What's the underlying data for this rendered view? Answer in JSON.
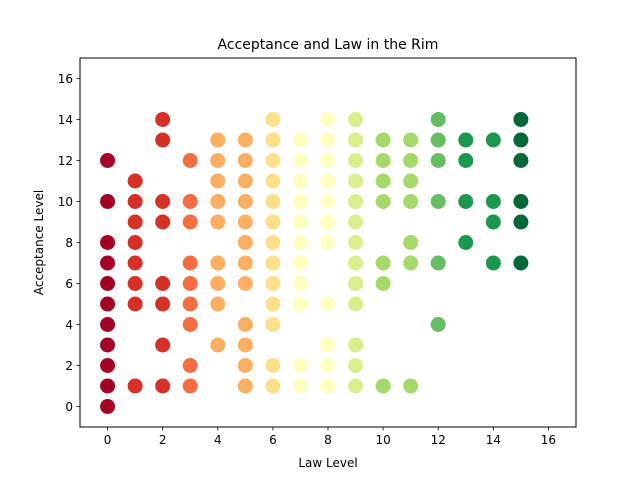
{
  "chart_data": {
    "type": "scatter",
    "title": "Acceptance and Law in the Rim",
    "xlabel": "Law Level",
    "ylabel": "Acceptance Level",
    "xlim": [
      -1,
      17
    ],
    "ylim": [
      -1,
      17
    ],
    "x_ticks": [
      0,
      2,
      4,
      6,
      8,
      10,
      12,
      14,
      16
    ],
    "y_ticks": [
      0,
      2,
      4,
      6,
      8,
      10,
      12,
      14,
      16
    ],
    "grid": false,
    "legend": "none",
    "color_map": "RdYlGn (by law level)",
    "colors_by_x": {
      "0": "#a50026",
      "1": "#d73027",
      "2": "#d73027",
      "3": "#f46d43",
      "4": "#fdae61",
      "5": "#fdae61",
      "6": "#fee08b",
      "7": "#ffffbf",
      "8": "#ffffbf",
      "9": "#d9ef8b",
      "10": "#a6d96a",
      "11": "#a6d96a",
      "12": "#66bd63",
      "13": "#1a9850",
      "14": "#1a9850",
      "15": "#006837"
    },
    "points": [
      {
        "x": 0,
        "y": 0
      },
      {
        "x": 0,
        "y": 1
      },
      {
        "x": 0,
        "y": 2
      },
      {
        "x": 0,
        "y": 3
      },
      {
        "x": 0,
        "y": 4
      },
      {
        "x": 0,
        "y": 5
      },
      {
        "x": 0,
        "y": 6
      },
      {
        "x": 0,
        "y": 7
      },
      {
        "x": 0,
        "y": 8
      },
      {
        "x": 0,
        "y": 10
      },
      {
        "x": 0,
        "y": 12
      },
      {
        "x": 1,
        "y": 1
      },
      {
        "x": 1,
        "y": 5
      },
      {
        "x": 1,
        "y": 6
      },
      {
        "x": 1,
        "y": 7
      },
      {
        "x": 1,
        "y": 8
      },
      {
        "x": 1,
        "y": 9
      },
      {
        "x": 1,
        "y": 10
      },
      {
        "x": 1,
        "y": 11
      },
      {
        "x": 2,
        "y": 1
      },
      {
        "x": 2,
        "y": 3
      },
      {
        "x": 2,
        "y": 5
      },
      {
        "x": 2,
        "y": 6
      },
      {
        "x": 2,
        "y": 9
      },
      {
        "x": 2,
        "y": 10
      },
      {
        "x": 2,
        "y": 13
      },
      {
        "x": 2,
        "y": 14
      },
      {
        "x": 3,
        "y": 1
      },
      {
        "x": 3,
        "y": 2
      },
      {
        "x": 3,
        "y": 4
      },
      {
        "x": 3,
        "y": 5
      },
      {
        "x": 3,
        "y": 6
      },
      {
        "x": 3,
        "y": 7
      },
      {
        "x": 3,
        "y": 9
      },
      {
        "x": 3,
        "y": 10
      },
      {
        "x": 3,
        "y": 12
      },
      {
        "x": 4,
        "y": 3
      },
      {
        "x": 4,
        "y": 5
      },
      {
        "x": 4,
        "y": 6
      },
      {
        "x": 4,
        "y": 7
      },
      {
        "x": 4,
        "y": 9
      },
      {
        "x": 4,
        "y": 10
      },
      {
        "x": 4,
        "y": 11
      },
      {
        "x": 4,
        "y": 12
      },
      {
        "x": 4,
        "y": 13
      },
      {
        "x": 5,
        "y": 1
      },
      {
        "x": 5,
        "y": 2
      },
      {
        "x": 5,
        "y": 3
      },
      {
        "x": 5,
        "y": 4
      },
      {
        "x": 5,
        "y": 6
      },
      {
        "x": 5,
        "y": 7
      },
      {
        "x": 5,
        "y": 8
      },
      {
        "x": 5,
        "y": 9
      },
      {
        "x": 5,
        "y": 10
      },
      {
        "x": 5,
        "y": 11
      },
      {
        "x": 5,
        "y": 12
      },
      {
        "x": 5,
        "y": 13
      },
      {
        "x": 6,
        "y": 1
      },
      {
        "x": 6,
        "y": 2
      },
      {
        "x": 6,
        "y": 4
      },
      {
        "x": 6,
        "y": 5
      },
      {
        "x": 6,
        "y": 6
      },
      {
        "x": 6,
        "y": 7
      },
      {
        "x": 6,
        "y": 8
      },
      {
        "x": 6,
        "y": 9
      },
      {
        "x": 6,
        "y": 10
      },
      {
        "x": 6,
        "y": 11
      },
      {
        "x": 6,
        "y": 12
      },
      {
        "x": 6,
        "y": 13
      },
      {
        "x": 6,
        "y": 14
      },
      {
        "x": 7,
        "y": 1
      },
      {
        "x": 7,
        "y": 2
      },
      {
        "x": 7,
        "y": 5
      },
      {
        "x": 7,
        "y": 6
      },
      {
        "x": 7,
        "y": 7
      },
      {
        "x": 7,
        "y": 8
      },
      {
        "x": 7,
        "y": 9
      },
      {
        "x": 7,
        "y": 10
      },
      {
        "x": 7,
        "y": 11
      },
      {
        "x": 7,
        "y": 12
      },
      {
        "x": 7,
        "y": 13
      },
      {
        "x": 8,
        "y": 1
      },
      {
        "x": 8,
        "y": 2
      },
      {
        "x": 8,
        "y": 3
      },
      {
        "x": 8,
        "y": 5
      },
      {
        "x": 8,
        "y": 8
      },
      {
        "x": 8,
        "y": 9
      },
      {
        "x": 8,
        "y": 10
      },
      {
        "x": 8,
        "y": 11
      },
      {
        "x": 8,
        "y": 12
      },
      {
        "x": 8,
        "y": 13
      },
      {
        "x": 8,
        "y": 14
      },
      {
        "x": 9,
        "y": 1
      },
      {
        "x": 9,
        "y": 2
      },
      {
        "x": 9,
        "y": 3
      },
      {
        "x": 9,
        "y": 5
      },
      {
        "x": 9,
        "y": 6
      },
      {
        "x": 9,
        "y": 7
      },
      {
        "x": 9,
        "y": 8
      },
      {
        "x": 9,
        "y": 9
      },
      {
        "x": 9,
        "y": 10
      },
      {
        "x": 9,
        "y": 11
      },
      {
        "x": 9,
        "y": 12
      },
      {
        "x": 9,
        "y": 13
      },
      {
        "x": 9,
        "y": 14
      },
      {
        "x": 10,
        "y": 1
      },
      {
        "x": 10,
        "y": 6
      },
      {
        "x": 10,
        "y": 7
      },
      {
        "x": 10,
        "y": 10
      },
      {
        "x": 10,
        "y": 11
      },
      {
        "x": 10,
        "y": 12
      },
      {
        "x": 10,
        "y": 13
      },
      {
        "x": 11,
        "y": 1
      },
      {
        "x": 11,
        "y": 7
      },
      {
        "x": 11,
        "y": 8
      },
      {
        "x": 11,
        "y": 10
      },
      {
        "x": 11,
        "y": 11
      },
      {
        "x": 11,
        "y": 12
      },
      {
        "x": 11,
        "y": 13
      },
      {
        "x": 12,
        "y": 4
      },
      {
        "x": 12,
        "y": 7
      },
      {
        "x": 12,
        "y": 10
      },
      {
        "x": 12,
        "y": 12
      },
      {
        "x": 12,
        "y": 13
      },
      {
        "x": 12,
        "y": 14
      },
      {
        "x": 13,
        "y": 8
      },
      {
        "x": 13,
        "y": 10
      },
      {
        "x": 13,
        "y": 12
      },
      {
        "x": 13,
        "y": 13
      },
      {
        "x": 14,
        "y": 7
      },
      {
        "x": 14,
        "y": 9
      },
      {
        "x": 14,
        "y": 10
      },
      {
        "x": 14,
        "y": 13
      },
      {
        "x": 15,
        "y": 7
      },
      {
        "x": 15,
        "y": 9
      },
      {
        "x": 15,
        "y": 10
      },
      {
        "x": 15,
        "y": 12
      },
      {
        "x": 15,
        "y": 13
      },
      {
        "x": 15,
        "y": 14
      }
    ]
  }
}
